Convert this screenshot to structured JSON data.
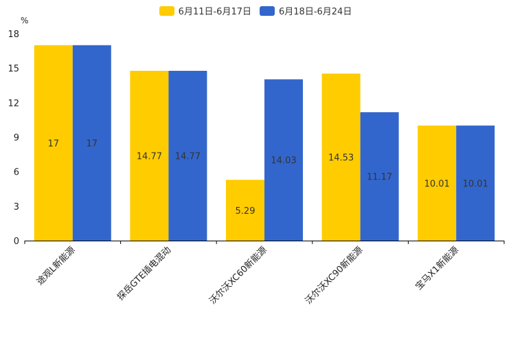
{
  "chart_data": {
    "type": "bar",
    "ylabel": "%",
    "ylim": [
      0,
      18
    ],
    "yticks": [
      0,
      3,
      6,
      9,
      12,
      15,
      18
    ],
    "categories": [
      "途观L新能源",
      "探岳GTE插电混动",
      "沃尔沃XC60新能源",
      "沃尔沃XC90新能源",
      "宝马X1新能源"
    ],
    "series": [
      {
        "name": "6月11日-6月17日",
        "color": "#FFCC00",
        "values": [
          17,
          14.77,
          5.29,
          14.53,
          10.01
        ],
        "labels": [
          "17",
          "14.77",
          "5.29",
          "14.53",
          "10.01"
        ]
      },
      {
        "name": "6月18日-6月24日",
        "color": "#3366CC",
        "values": [
          17,
          14.77,
          14.03,
          11.17,
          10.01
        ],
        "labels": [
          "17",
          "14.77",
          "14.03",
          "11.17",
          "10.01"
        ]
      }
    ],
    "legend_position": "top-center",
    "grid": false
  }
}
